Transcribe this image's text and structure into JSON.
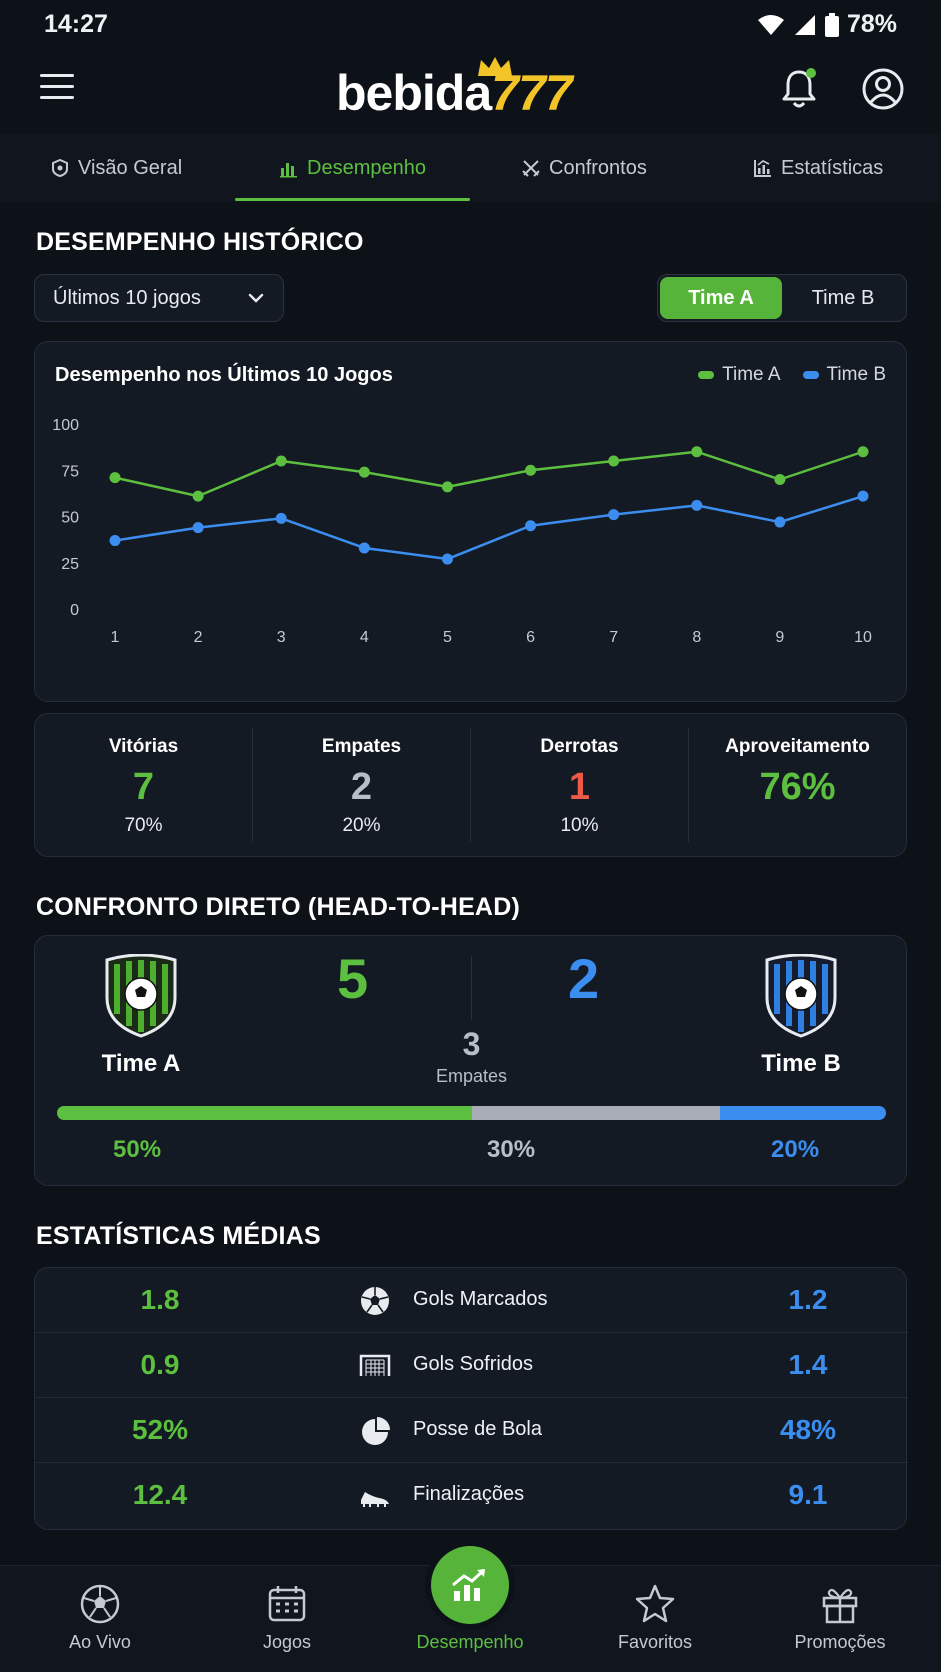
{
  "status_bar": {
    "time": "14:27",
    "battery": "78%"
  },
  "header": {
    "logo_text_1": "bebida",
    "logo_text_2": "777"
  },
  "tabs": [
    {
      "label": "Visão Geral",
      "icon": "shield-icon",
      "active": false
    },
    {
      "label": "Desempenho",
      "icon": "bar-chart-icon",
      "active": true
    },
    {
      "label": "Confrontos",
      "icon": "crossed-swords-icon",
      "active": false
    },
    {
      "label": "Estatísticas",
      "icon": "stats-icon",
      "active": false
    }
  ],
  "historic": {
    "title": "DESEMPENHO HISTÓRICO",
    "dropdown_value": "Últimos 10 jogos",
    "toggle": {
      "a": "Time A",
      "b": "Time B",
      "selected": "Time A"
    }
  },
  "chart_data": {
    "type": "line",
    "title": "Desempenho nos Últimos 10 Jogos",
    "x": [
      1,
      2,
      3,
      4,
      5,
      6,
      7,
      8,
      9,
      10
    ],
    "yticks": [
      0,
      25,
      50,
      75,
      100
    ],
    "ylim": [
      0,
      100
    ],
    "grid": false,
    "legend": "top-right",
    "series": [
      {
        "name": "Time A",
        "color": "#5cbf3f",
        "values": [
          71,
          61,
          80,
          74,
          66,
          75,
          80,
          85,
          70,
          85
        ]
      },
      {
        "name": "Time B",
        "color": "#3b8ef0",
        "values": [
          37,
          44,
          49,
          33,
          27,
          45,
          51,
          56,
          47,
          61
        ]
      }
    ]
  },
  "summary": [
    {
      "label": "Vitórias",
      "value": "7",
      "pct": "70%",
      "color": "green"
    },
    {
      "label": "Empates",
      "value": "2",
      "pct": "20%",
      "color": "grey"
    },
    {
      "label": "Derrotas",
      "value": "1",
      "pct": "10%",
      "color": "red"
    },
    {
      "label": "Aproveitamento",
      "value": "76%",
      "pct": "",
      "color": "green"
    }
  ],
  "h2h": {
    "title": "CONFRONTO DIRETO (HEAD-TO-HEAD)",
    "team_a": "Time A",
    "team_b": "Time B",
    "wins_a": "5",
    "wins_b": "2",
    "draws": "3",
    "draws_label": "Empates",
    "pct_a": "50%",
    "pct_draw": "30%",
    "pct_b": "20%",
    "share_a": 50,
    "share_draw": 30,
    "share_b": 20
  },
  "averages": {
    "title": "ESTATÍSTICAS MÉDIAS",
    "rows": [
      {
        "a": "1.8",
        "label": "Gols Marcados",
        "b": "1.2",
        "icon": "soccer-ball-icon"
      },
      {
        "a": "0.9",
        "label": "Gols Sofridos",
        "b": "1.4",
        "icon": "goal-net-icon"
      },
      {
        "a": "52%",
        "label": "Posse de Bola",
        "b": "48%",
        "icon": "pie-chart-icon"
      },
      {
        "a": "12.4",
        "label": "Finalizações",
        "b": "9.1",
        "icon": "cleat-icon"
      }
    ]
  },
  "bottom_nav": [
    {
      "label": "Ao Vivo",
      "icon": "soccer-ball-icon"
    },
    {
      "label": "Jogos",
      "icon": "calendar-icon"
    },
    {
      "label": "Desempenho",
      "icon": "trend-chart-icon",
      "active": true
    },
    {
      "label": "Favoritos",
      "icon": "star-icon"
    },
    {
      "label": "Promoções",
      "icon": "gift-icon"
    }
  ],
  "colors": {
    "green": "#5cbf3f",
    "blue": "#3b8ef0",
    "red": "#ee5a48",
    "grey": "#b8bec9",
    "background": "#0d1118"
  }
}
